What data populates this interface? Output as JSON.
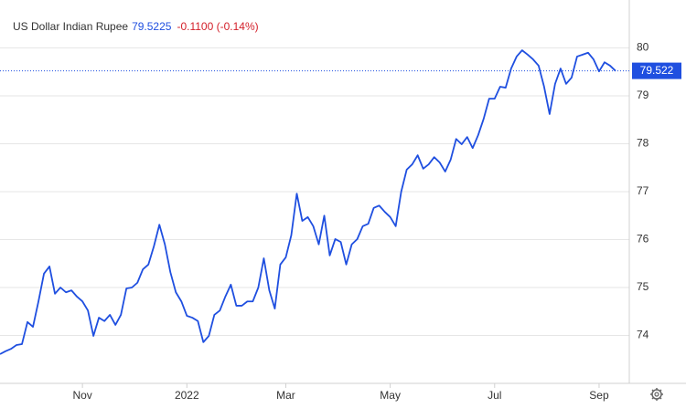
{
  "chart_data": {
    "type": "line",
    "title": "US Dollar Indian Rupee",
    "price": "79.5225",
    "change": "-0.1100 (-0.14%)",
    "series": [
      {
        "color": "#1f4fe0",
        "values": [
          73.61,
          73.67,
          73.72,
          73.8,
          73.82,
          74.28,
          74.18,
          74.71,
          75.29,
          75.44,
          74.87,
          75.0,
          74.9,
          74.94,
          74.81,
          74.71,
          74.52,
          73.99,
          74.37,
          74.3,
          74.43,
          74.22,
          74.43,
          74.98,
          75.0,
          75.1,
          75.38,
          75.48,
          75.86,
          76.31,
          75.9,
          75.32,
          74.9,
          74.71,
          74.41,
          74.37,
          74.3,
          73.86,
          73.99,
          74.43,
          74.52,
          74.81,
          75.06,
          74.62,
          74.62,
          74.71,
          74.71,
          75.0,
          75.61,
          74.94,
          74.56,
          75.48,
          75.63,
          76.09,
          76.96,
          76.39,
          76.47,
          76.28,
          75.9,
          76.5,
          75.67,
          76.01,
          75.95,
          75.48,
          75.9,
          76.01,
          76.28,
          76.33,
          76.66,
          76.71,
          76.58,
          76.47,
          76.28,
          77.0,
          77.46,
          77.57,
          77.76,
          77.48,
          77.57,
          77.72,
          77.61,
          77.42,
          77.67,
          78.1,
          77.99,
          78.14,
          77.91,
          78.18,
          78.52,
          78.94,
          78.94,
          79.19,
          79.17,
          79.57,
          79.82,
          79.95,
          79.86,
          79.76,
          79.63,
          79.19,
          78.62,
          79.25,
          79.57,
          79.25,
          79.38,
          79.82,
          79.86,
          79.9,
          79.76,
          79.51,
          79.7,
          79.63,
          79.52
        ]
      }
    ],
    "current": {
      "value": 79.522,
      "label": "79.522"
    },
    "xlim": [
      0,
      114.5
    ],
    "xticks": [
      {
        "value": 15,
        "label": "Nov"
      },
      {
        "value": 34,
        "label": "2022"
      },
      {
        "value": 52,
        "label": "Mar"
      },
      {
        "value": 71,
        "label": "May"
      },
      {
        "value": 90,
        "label": "Jul"
      },
      {
        "value": 109,
        "label": "Sep"
      }
    ],
    "ylim": [
      73,
      81
    ],
    "yticks": [
      74,
      75,
      76,
      77,
      78,
      79,
      80
    ],
    "grid": true
  }
}
